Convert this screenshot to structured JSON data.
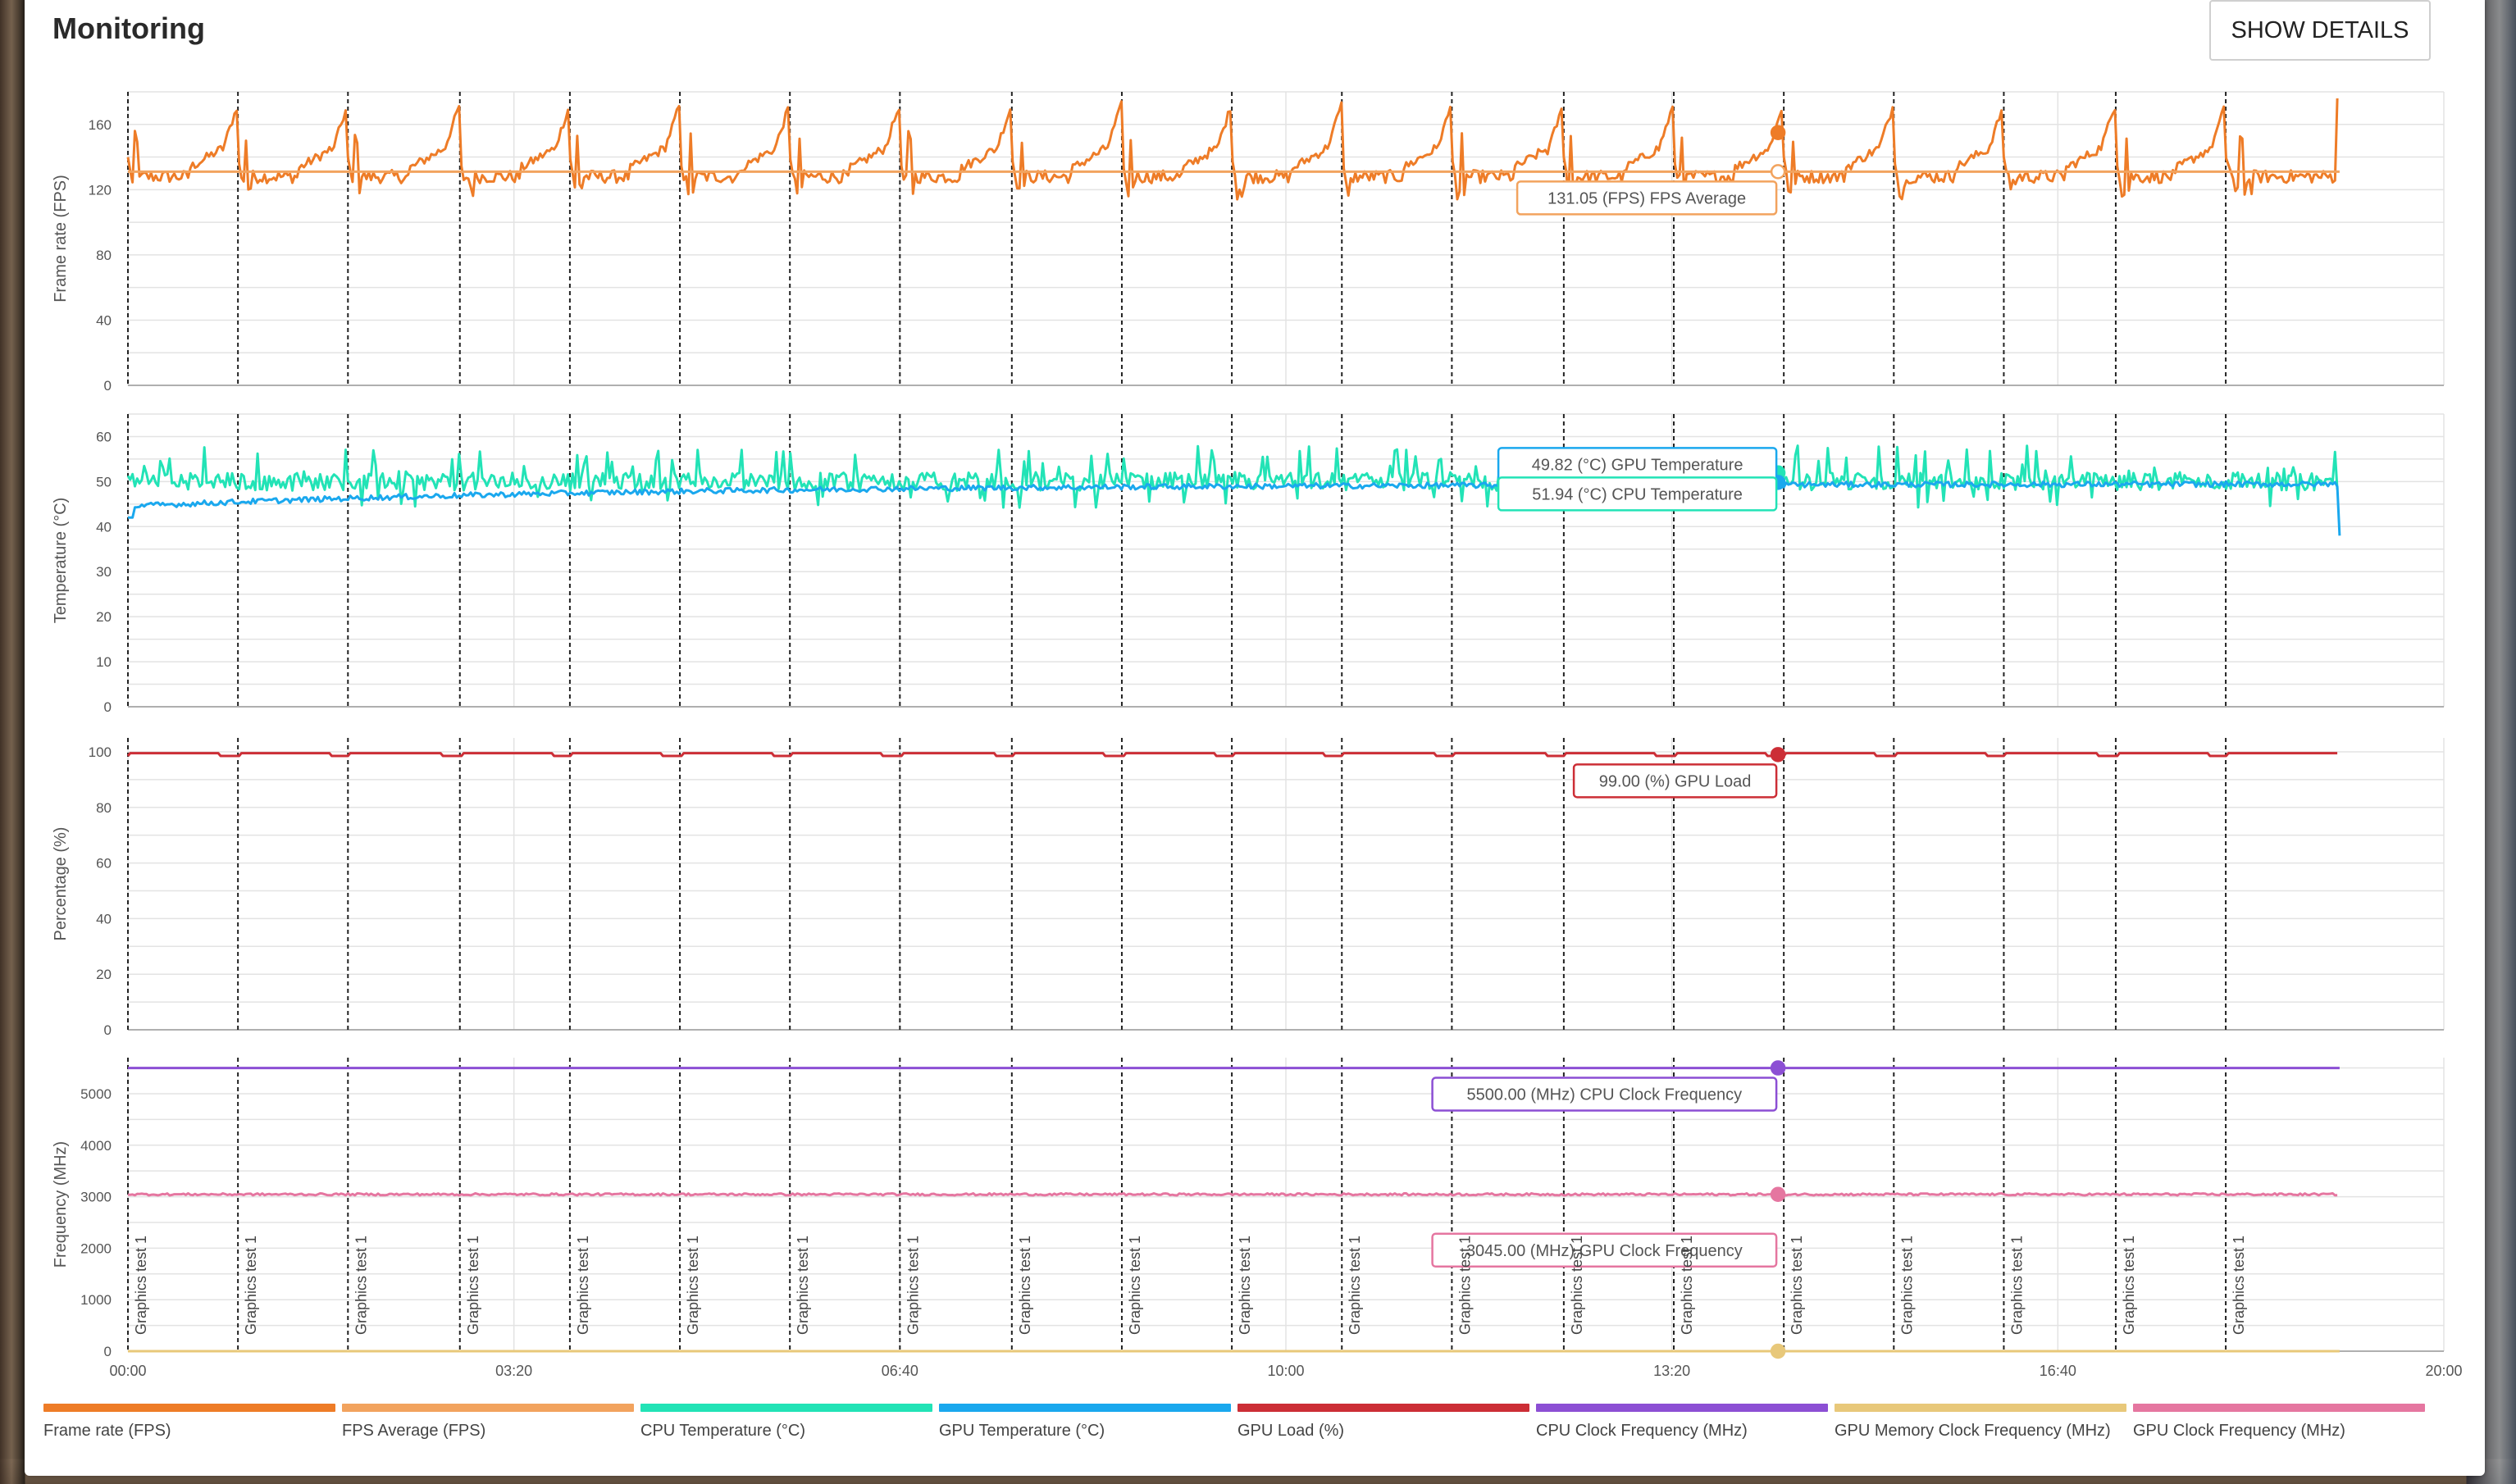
{
  "page": {
    "title": "Monitoring",
    "show_details_label": "SHOW DETAILS"
  },
  "colors": {
    "fps": "#ee7c27",
    "fps_avg": "#f2a35e",
    "cpu_temp": "#22e3b6",
    "gpu_temp": "#1aa8ee",
    "gpu_load": "#cc2e36",
    "cpu_clock": "#8c4fd4",
    "gpu_mem_clock": "#e8c87a",
    "gpu_clock": "#e576a0",
    "grid": "#e3e3e3",
    "axis": "#222222",
    "marker_line": "#222222"
  },
  "legend": [
    {
      "label": "Frame rate (FPS)",
      "color": "#ee7c27"
    },
    {
      "label": "FPS Average (FPS)",
      "color": "#f2a35e"
    },
    {
      "label": "CPU Temperature (°C)",
      "color": "#22e3b6"
    },
    {
      "label": "GPU Temperature (°C)",
      "color": "#1aa8ee"
    },
    {
      "label": "GPU Load (%)",
      "color": "#cc2e36"
    },
    {
      "label": "CPU Clock Frequency (MHz)",
      "color": "#8c4fd4"
    },
    {
      "label": "GPU Memory Clock Frequency (MHz)",
      "color": "#e8c87a"
    },
    {
      "label": "GPU Clock Frequency (MHz)",
      "color": "#e576a0"
    }
  ],
  "chart_data": {
    "type": "line",
    "x_axis": {
      "unit": "mm:ss",
      "range_seconds": [
        0,
        1200
      ],
      "ticks_seconds": [
        0,
        200,
        400,
        600,
        800,
        1000,
        1200
      ],
      "tick_labels": [
        "00:00",
        "03:20",
        "06:40",
        "10:00",
        "13:20",
        "16:40",
        "20:00"
      ]
    },
    "run_end_seconds": 1146,
    "cursor_seconds": 855,
    "markers": {
      "label": "Graphics test 1",
      "times_seconds": [
        0,
        57,
        114,
        172,
        229,
        286,
        343,
        400,
        458,
        515,
        572,
        629,
        686,
        744,
        801,
        858,
        915,
        972,
        1030,
        1087
      ]
    },
    "panels": [
      {
        "ylabel": "Frame rate (FPS)",
        "ylim": [
          0,
          180
        ],
        "yticks": [
          0,
          40,
          80,
          120,
          160
        ],
        "series": [
          {
            "name": "Frame rate (FPS)",
            "color_key": "fps",
            "pattern": "periodic_spiky",
            "base": 130,
            "min": 108,
            "max": 176,
            "cursor_value": 155
          },
          {
            "name": "FPS Average (FPS)",
            "color_key": "fps_avg",
            "pattern": "flat",
            "value": 131.05,
            "cursor_value": 131.05
          }
        ],
        "tooltips": [
          {
            "text": "131.05 (FPS) FPS Average",
            "color_key": "fps_avg"
          }
        ]
      },
      {
        "ylabel": "Temperature (°C)",
        "ylim": [
          0,
          65
        ],
        "yticks": [
          0,
          10,
          20,
          30,
          40,
          50,
          60
        ],
        "series": [
          {
            "name": "CPU Temperature (°C)",
            "color_key": "cpu_temp",
            "pattern": "noisy_band",
            "base": 49,
            "min": 44,
            "max": 60,
            "cursor_value": 51.94
          },
          {
            "name": "GPU Temperature (°C)",
            "color_key": "gpu_temp",
            "pattern": "warmup",
            "start": 42,
            "base": 49.5,
            "end": 38,
            "cursor_value": 49.82
          }
        ],
        "tooltips": [
          {
            "text": "49.82 (°C) GPU Temperature",
            "color_key": "gpu_temp"
          },
          {
            "text": "51.94 (°C) CPU Temperature",
            "color_key": "cpu_temp"
          }
        ]
      },
      {
        "ylabel": "Percentage (%)",
        "ylim": [
          0,
          105
        ],
        "yticks": [
          0,
          20,
          40,
          60,
          80,
          100
        ],
        "series": [
          {
            "name": "GPU Load (%)",
            "color_key": "gpu_load",
            "pattern": "flat_dips",
            "value": 99.5,
            "dip": 98.5,
            "cursor_value": 99.0
          }
        ],
        "tooltips": [
          {
            "text": "99.00 (%) GPU Load",
            "color_key": "gpu_load"
          }
        ]
      },
      {
        "ylabel": "Frequency (MHz)",
        "ylim": [
          0,
          5700
        ],
        "yticks": [
          0,
          1000,
          2000,
          3000,
          4000,
          5000
        ],
        "series": [
          {
            "name": "CPU Clock Frequency (MHz)",
            "color_key": "cpu_clock",
            "pattern": "flat",
            "value": 5500,
            "cursor_value": 5500.0
          },
          {
            "name": "GPU Clock Frequency (MHz)",
            "color_key": "gpu_clock",
            "pattern": "flat_noise",
            "value": 3045,
            "cursor_value": 3045.0
          },
          {
            "name": "GPU Memory Clock Frequency (MHz)",
            "color_key": "gpu_mem_clock",
            "pattern": "flat",
            "value": 0,
            "cursor_value": 0
          }
        ],
        "tooltips": [
          {
            "text": "5500.00 (MHz) CPU Clock Frequency",
            "color_key": "cpu_clock"
          },
          {
            "text": "3045.00 (MHz) GPU Clock Frequency",
            "color_key": "gpu_clock"
          }
        ]
      }
    ]
  }
}
